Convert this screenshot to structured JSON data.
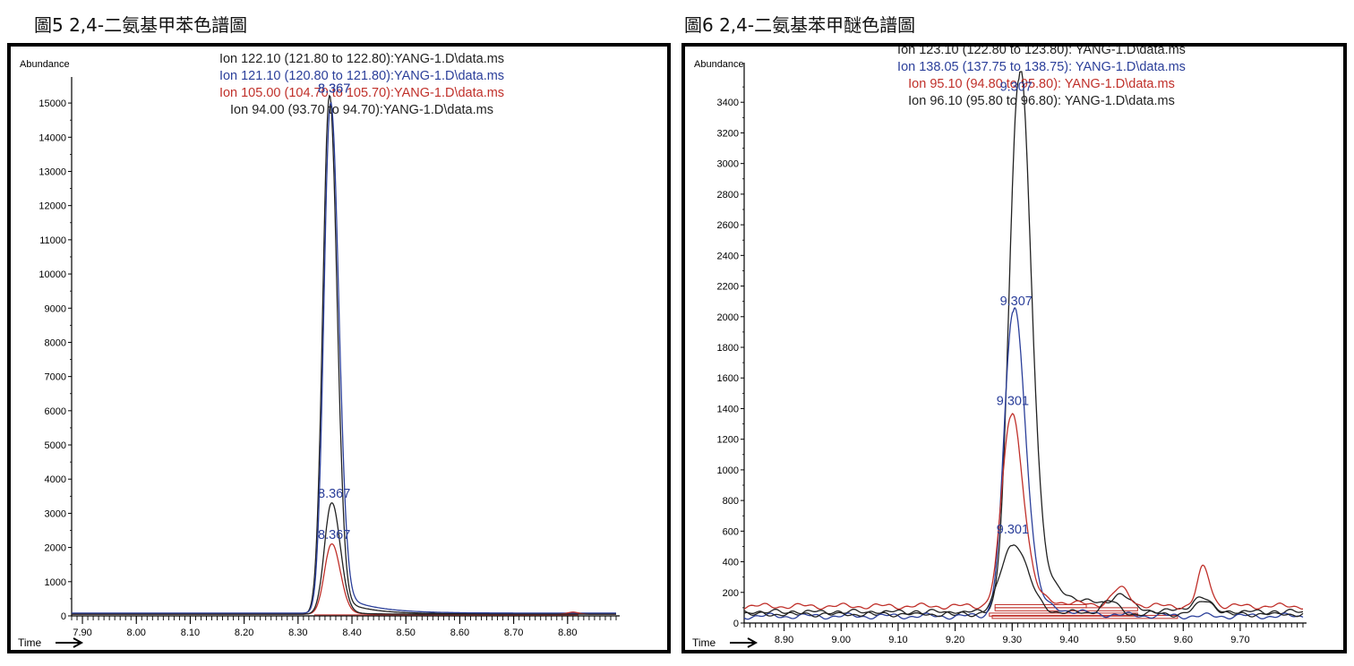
{
  "figures": [
    {
      "caption": "圖5 2,4-二氨基甲苯色譜圖",
      "ylabel": "Abundance",
      "xlabel": "Time",
      "legend": [
        {
          "text": "Ion 122.10 (121.80 to 122.80):YANG-1.D\\data.ms",
          "color": "#222222"
        },
        {
          "text": "Ion 121.10 (120.80 to 121.80):YANG-1.D\\data.ms",
          "color": "#2b3f9a"
        },
        {
          "text": "Ion 105.00 (104.70 to 105.70):YANG-1.D\\data.ms",
          "color": "#c0302a"
        },
        {
          "text": "Ion 94.00 (93.70 to 94.70):YANG-1.D\\data.ms",
          "color": "#222222"
        }
      ],
      "peak_labels": [
        "8.367",
        "8.367",
        "8.367",
        "8.367"
      ]
    },
    {
      "caption": "圖6 2,4-二氨基苯甲醚色譜圖",
      "ylabel": "Abundance",
      "xlabel": "Time",
      "legend": [
        {
          "text": "Ion 123.10 (122.80 to 123.80): YANG-1.D\\data.ms",
          "color": "#222222"
        },
        {
          "text": "Ion 138.05 (137.75 to 138.75): YANG-1.D\\data.ms",
          "color": "#2b3f9a"
        },
        {
          "text": "Ion 95.10 (94.80 to 95.80): YANG-1.D\\data.ms",
          "color": "#c0302a"
        },
        {
          "text": "Ion 96.10 (95.80 to 96.80): YANG-1.D\\data.ms",
          "color": "#222222"
        }
      ],
      "peak_labels": [
        "9.307",
        "9.307",
        "9.301",
        "9.301"
      ]
    }
  ],
  "chart_data": [
    {
      "type": "line",
      "xlim": [
        7.88,
        8.89
      ],
      "ylim": [
        0,
        15500
      ],
      "x_ticks": [
        "7.90",
        "8.00",
        "8.10",
        "8.20",
        "8.30",
        "8.40",
        "8.50",
        "8.60",
        "8.70",
        "8.80"
      ],
      "y_ticks": [
        "0",
        "1000",
        "2000",
        "3000",
        "4000",
        "5000",
        "6000",
        "7000",
        "8000",
        "9000",
        "10000",
        "11000",
        "12000",
        "13000",
        "14000",
        "15000"
      ],
      "series": [
        {
          "color": "#222222",
          "base": 60,
          "peaks": [
            {
              "x": 8.358,
              "h": 15150,
              "sl": 0.012,
              "sr": 0.014,
              "tail": 600,
              "tau": 0.05
            }
          ]
        },
        {
          "color": "#2b3f9a",
          "base": 80,
          "peaks": [
            {
              "x": 8.36,
              "h": 14900,
              "sl": 0.012,
              "sr": 0.015,
              "tail": 700,
              "tau": 0.06
            }
          ]
        },
        {
          "color": "#c0302a",
          "base": 50,
          "peaks": [
            {
              "x": 8.362,
              "h": 2050,
              "sl": 0.013,
              "sr": 0.016,
              "tail": 100,
              "tau": 0.03
            },
            {
              "x": 8.81,
              "h": 60,
              "sl": 0.01,
              "sr": 0.01,
              "tail": 0,
              "tau": 0.01
            }
          ]
        },
        {
          "color": "#222222",
          "base": 50,
          "peaks": [
            {
              "x": 8.362,
              "h": 3250,
              "sl": 0.013,
              "sr": 0.016,
              "tail": 150,
              "tau": 0.03
            }
          ]
        }
      ],
      "peak_marks": [
        {
          "x": 8.367,
          "y": 15200,
          "color": "#2b3f9a"
        },
        {
          "x": 8.367,
          "y": 15200,
          "color": "#2b3f9a"
        },
        {
          "x": 8.367,
          "y": 3350,
          "color": "#2b3f9a"
        },
        {
          "x": 8.367,
          "y": 2150,
          "color": "#2b3f9a"
        }
      ]
    },
    {
      "type": "line",
      "xlim": [
        8.83,
        9.81
      ],
      "ylim": [
        0,
        3600
      ],
      "x_ticks": [
        "8.90",
        "9.00",
        "9.10",
        "9.20",
        "9.30",
        "9.40",
        "9.50",
        "9.60",
        "9.70"
      ],
      "y_ticks": [
        "0",
        "200",
        "400",
        "600",
        "800",
        "1000",
        "1200",
        "1400",
        "1600",
        "1800",
        "2000",
        "2200",
        "2400",
        "2600",
        "2800",
        "3000",
        "3200",
        "3400"
      ],
      "series": [
        {
          "color": "#222222",
          "base": 70,
          "peaks": [
            {
              "x": 9.312,
              "h": 3480,
              "sl": 0.017,
              "sr": 0.02,
              "tail": 400,
              "tau": 0.07
            },
            {
              "x": 9.49,
              "h": 90,
              "sl": 0.015,
              "sr": 0.015,
              "tail": 0,
              "tau": 0.01
            },
            {
              "x": 9.63,
              "h": 100,
              "sl": 0.015,
              "sr": 0.015,
              "tail": 0,
              "tau": 0.01
            }
          ]
        },
        {
          "color": "#2b3f9a",
          "base": 45,
          "peaks": [
            {
              "x": 9.302,
              "h": 1990,
              "sl": 0.016,
              "sr": 0.02,
              "tail": 180,
              "tau": 0.06
            }
          ]
        },
        {
          "color": "#c0302a",
          "base": 110,
          "peaks": [
            {
              "x": 9.298,
              "h": 1240,
              "sl": 0.016,
              "sr": 0.02,
              "tail": 120,
              "tau": 0.06
            },
            {
              "x": 9.49,
              "h": 110,
              "sl": 0.015,
              "sr": 0.015,
              "tail": 0,
              "tau": 0.01
            },
            {
              "x": 9.635,
              "h": 250,
              "sl": 0.01,
              "sr": 0.012,
              "tail": 0,
              "tau": 0.01
            }
          ]
        },
        {
          "color": "#222222",
          "base": 60,
          "peaks": [
            {
              "x": 9.3,
              "h": 450,
              "sl": 0.02,
              "sr": 0.025,
              "tail": 60,
              "tau": 0.05
            },
            {
              "x": 9.47,
              "h": 80,
              "sl": 0.015,
              "sr": 0.015,
              "tail": 0,
              "tau": 0.01
            },
            {
              "x": 9.64,
              "h": 90,
              "sl": 0.015,
              "sr": 0.015,
              "tail": 0,
              "tau": 0.01
            }
          ]
        }
      ],
      "peak_marks": [
        {
          "x": 9.307,
          "y": 3450,
          "color": "#2b3f9a"
        },
        {
          "x": 9.307,
          "y": 2050,
          "color": "#2b3f9a"
        },
        {
          "x": 9.301,
          "y": 1400,
          "color": "#2b3f9a"
        },
        {
          "x": 9.301,
          "y": 560,
          "color": "#2b3f9a"
        }
      ]
    }
  ]
}
